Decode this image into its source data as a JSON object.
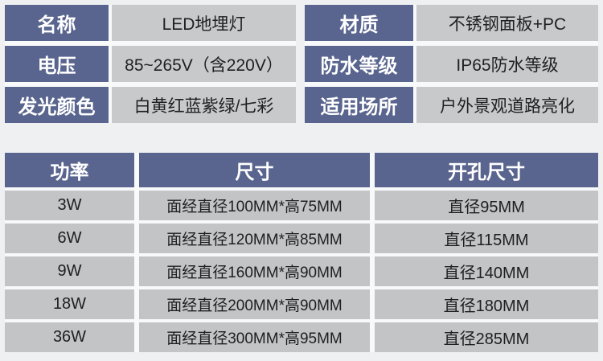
{
  "colors": {
    "label_bg": "#59658e",
    "label_text": "#ffffff",
    "value_bg": "#c8c9ca",
    "table_row_bg": "#c3c4c6",
    "value_text": "#1f2023",
    "page_bg": "#eff0f2"
  },
  "specs": {
    "left": [
      {
        "label": "名称",
        "value": "LED地埋灯"
      },
      {
        "label": "电压",
        "value": "85~265V（含220V）"
      },
      {
        "label": "发光颜色",
        "value": "白黄红蓝紫绿/七彩"
      }
    ],
    "right": [
      {
        "label": "材质",
        "value": "不锈钢面板+PC"
      },
      {
        "label": "防水等级",
        "value": "IP65防水等级"
      },
      {
        "label": "适用场所",
        "value": "户外景观道路亮化"
      }
    ]
  },
  "spec_table": {
    "headers": [
      "功率",
      "尺寸",
      "开孔尺寸"
    ],
    "rows": [
      {
        "power": "3W",
        "size": "面经直径100MM*高75MM",
        "hole": "直径95MM"
      },
      {
        "power": "6W",
        "size": "面经直径120MM*高85MM",
        "hole": "直径115MM"
      },
      {
        "power": "9W",
        "size": "面经直径160MM*高90MM",
        "hole": "直径140MM"
      },
      {
        "power": "18W",
        "size": "面经直径200MM*高90MM",
        "hole": "直径180MM"
      },
      {
        "power": "36W",
        "size": "面经直径300MM*高95MM",
        "hole": "直径285MM"
      }
    ]
  }
}
